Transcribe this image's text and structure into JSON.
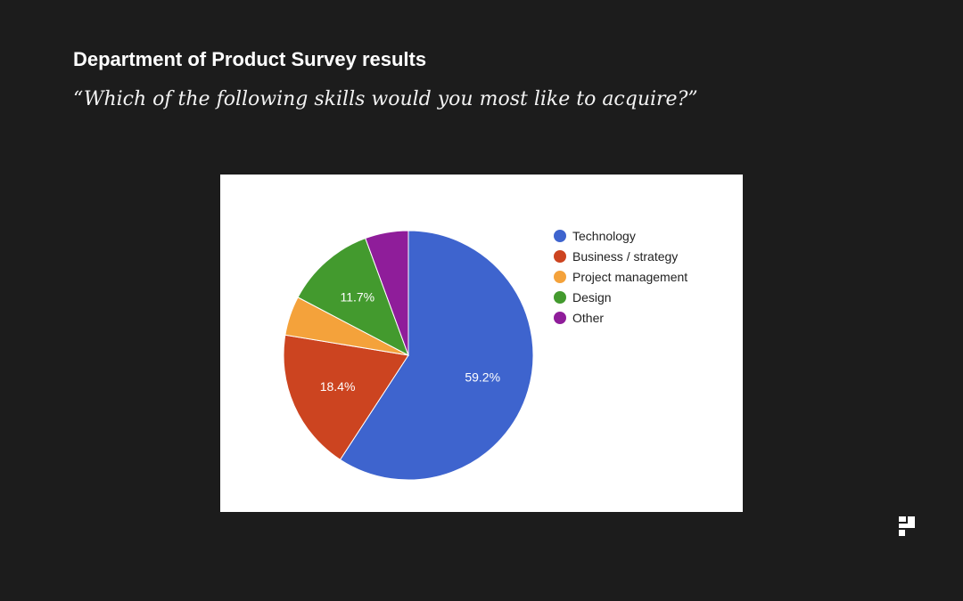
{
  "slide": {
    "title": "Department of Product Survey results",
    "subtitle": "“Which of the following skills would you most like to acquire?”"
  },
  "chart_data": {
    "type": "pie",
    "title": "",
    "legend_position": "right",
    "slices": [
      {
        "label": "Technology",
        "value": 59.2,
        "color": "#3e64ce",
        "data_label": "59.2%"
      },
      {
        "label": "Business / strategy",
        "value": 18.4,
        "color": "#cc4420",
        "data_label": "18.4%"
      },
      {
        "label": "Project management",
        "value": 5.1,
        "color": "#f4a23b",
        "data_label": ""
      },
      {
        "label": "Design",
        "value": 11.7,
        "color": "#439a2e",
        "data_label": "11.7%"
      },
      {
        "label": "Other",
        "value": 5.6,
        "color": "#8f1d9a",
        "data_label": ""
      }
    ]
  },
  "logo": {
    "icon": "brand-logo-icon"
  }
}
